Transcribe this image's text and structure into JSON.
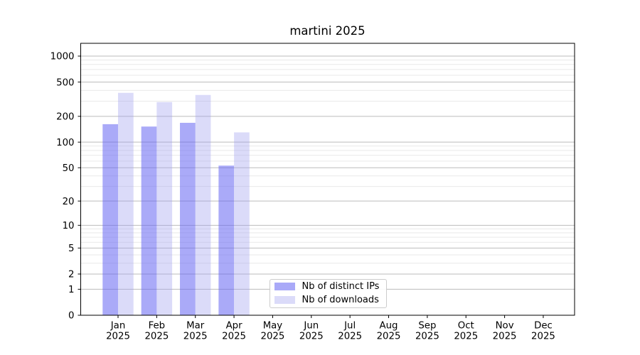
{
  "chart_data": {
    "type": "bar",
    "title": "martini 2025",
    "categories": [
      "Jan",
      "Feb",
      "Mar",
      "Apr",
      "May",
      "Jun",
      "Jul",
      "Aug",
      "Sep",
      "Oct",
      "Nov",
      "Dec"
    ],
    "category_year_line": "2025",
    "series": [
      {
        "name": "Nb of distinct IPs",
        "color_solid": "#a9a9f8",
        "color_rgba": "rgba(100,100,242,0.55)",
        "values": [
          162,
          152,
          168,
          53,
          0,
          0,
          0,
          0,
          0,
          0,
          0,
          0
        ]
      },
      {
        "name": "Nb of downloads",
        "color_solid": "#dbdbf9",
        "color_rgba": "rgba(160,160,240,0.38)",
        "values": [
          375,
          293,
          354,
          130,
          0,
          0,
          0,
          0,
          0,
          0,
          0,
          0
        ]
      }
    ],
    "xlabel": "",
    "ylabel": "",
    "y_scale": "log10(value+1)",
    "y_ticks": [
      0,
      1,
      2,
      5,
      10,
      20,
      50,
      100,
      200,
      500,
      1000
    ],
    "y_minor_gridlines": [
      3,
      4,
      6,
      7,
      8,
      9,
      30,
      40,
      60,
      70,
      80,
      90,
      300,
      400,
      600,
      700,
      800,
      900
    ],
    "ylim": [
      0,
      1400
    ],
    "grid": "horizontal-major-and-minor",
    "legend_position": "lower-center",
    "colors": {
      "major_grid": "#bbbbbb",
      "minor_grid": "#e9e9e9",
      "spine": "#000000",
      "tick_text": "#000000",
      "background": "#ffffff",
      "legend_border": "#cccccc"
    }
  }
}
